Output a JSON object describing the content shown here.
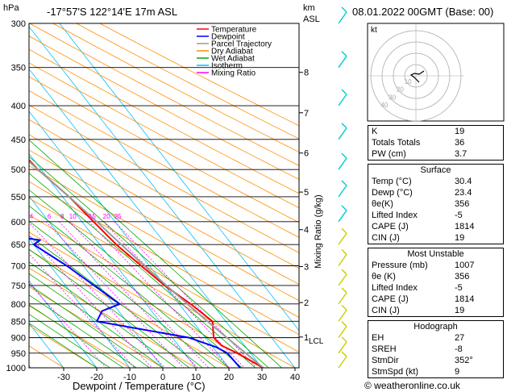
{
  "header": {
    "hpa_label": "hPa",
    "location": "-17°57'S  122°14'E  17m  ASL",
    "km_label": "km",
    "asl_label": "ASL",
    "datetime": "08.01.2022  00GMT  (Base: 00)"
  },
  "axes": {
    "xlabel": "Dewpoint / Temperature (°C)",
    "ylabel_right": "Mixing Ratio (g/kg)",
    "pressure_ticks": [
      "300",
      "350",
      "400",
      "450",
      "500",
      "550",
      "600",
      "650",
      "700",
      "750",
      "800",
      "850",
      "900",
      "950",
      "1000"
    ],
    "temp_ticks": [
      "-30",
      "-20",
      "-10",
      "0",
      "10",
      "20",
      "30",
      "40"
    ],
    "km_ticks": [
      "1",
      "2",
      "3",
      "4",
      "5",
      "6",
      "7",
      "8"
    ],
    "lcl_label": "LCL",
    "mixing_ratio_labels": [
      "1",
      "2",
      "3",
      "4",
      "6",
      "8",
      "10",
      "15",
      "20",
      "25"
    ]
  },
  "legend": [
    {
      "label": "Temperature",
      "color": "#ff0000"
    },
    {
      "label": "Dewpoint",
      "color": "#0000ff"
    },
    {
      "label": "Parcel Trajectory",
      "color": "#999999"
    },
    {
      "label": "Dry Adiabat",
      "color": "#ff8c00"
    },
    {
      "label": "Wet Adiabat",
      "color": "#00aa00"
    },
    {
      "label": "Isotherm",
      "color": "#00bfff"
    },
    {
      "label": "Mixing Ratio",
      "color": "#ff00ff"
    }
  ],
  "hodograph": {
    "unit_label": "kt",
    "ring_labels": [
      "10",
      "20",
      "30",
      "40"
    ]
  },
  "indices": {
    "k": {
      "label": "K",
      "value": "19"
    },
    "tt": {
      "label": "Totals Totals",
      "value": "36"
    },
    "pw": {
      "label": "PW (cm)",
      "value": "3.7"
    }
  },
  "surface": {
    "title": "Surface",
    "rows": [
      {
        "label": "Temp (°C)",
        "value": "30.4"
      },
      {
        "label": "Dewp (°C)",
        "value": "23.4"
      },
      {
        "label": "θe(K)",
        "value": "356"
      },
      {
        "label": "Lifted Index",
        "value": "-5"
      },
      {
        "label": "CAPE (J)",
        "value": "1814"
      },
      {
        "label": "CIN (J)",
        "value": "19"
      }
    ]
  },
  "most_unstable": {
    "title": "Most Unstable",
    "rows": [
      {
        "label": "Pressure (mb)",
        "value": "1007"
      },
      {
        "label": "θe (K)",
        "value": "356"
      },
      {
        "label": "Lifted Index",
        "value": "-5"
      },
      {
        "label": "CAPE (J)",
        "value": "1814"
      },
      {
        "label": "CIN (J)",
        "value": "19"
      }
    ]
  },
  "hodo_table": {
    "title": "Hodograph",
    "rows": [
      {
        "label": "EH",
        "value": "27"
      },
      {
        "label": "SREH",
        "value": "-8"
      },
      {
        "label": "StmDir",
        "value": "352°"
      },
      {
        "label": "StmSpd (kt)",
        "value": "9"
      }
    ]
  },
  "footer": {
    "copyright": "© weatheronline.co.uk"
  },
  "chart_data": {
    "type": "line",
    "title": "",
    "xlabel": "Dewpoint / Temperature (°C)",
    "ylabel": "hPa",
    "xlim": [
      -35,
      40
    ],
    "ylim": [
      1000,
      300
    ],
    "series": [
      {
        "name": "Temperature",
        "color": "#ff0000",
        "points": [
          [
            1000,
            30.4
          ],
          [
            950,
            26
          ],
          [
            925,
            23
          ],
          [
            900,
            22.5
          ],
          [
            850,
            26
          ],
          [
            800,
            23.5
          ],
          [
            750,
            20
          ],
          [
            700,
            17.5
          ],
          [
            650,
            15
          ],
          [
            600,
            13.5
          ],
          [
            550,
            12
          ],
          [
            500,
            9
          ],
          [
            450,
            7.5
          ],
          [
            400,
            7
          ],
          [
            375,
            4
          ]
        ]
      },
      {
        "name": "Dewpoint",
        "color": "#0000ff",
        "points": [
          [
            1000,
            23.4
          ],
          [
            950,
            23
          ],
          [
            930,
            21
          ],
          [
            900,
            15
          ],
          [
            850,
            -9
          ],
          [
            820,
            -5
          ],
          [
            800,
            2
          ],
          [
            770,
            0
          ],
          [
            700,
            -5
          ],
          [
            650,
            -10
          ],
          [
            640,
            -7
          ],
          [
            625,
            -20
          ],
          [
            620,
            -30
          ],
          [
            600,
            -13
          ],
          [
            595,
            -30
          ],
          [
            590,
            -10
          ],
          [
            575,
            -20
          ],
          [
            568,
            -30
          ],
          [
            560,
            -5
          ],
          [
            500,
            -10
          ],
          [
            480,
            -15
          ],
          [
            400,
            -20
          ],
          [
            390,
            -23
          ],
          [
            370,
            -19
          ],
          [
            340,
            -28
          ],
          [
            320,
            -32
          ],
          [
            300,
            -33
          ]
        ]
      },
      {
        "name": "Parcel Trajectory",
        "color": "#999999",
        "points": [
          [
            1000,
            30.4
          ],
          [
            950,
            28.5
          ],
          [
            900,
            26.5
          ],
          [
            850,
            24.5
          ],
          [
            800,
            22.5
          ],
          [
            750,
            20.5
          ],
          [
            700,
            18.5
          ],
          [
            650,
            16.5
          ],
          [
            600,
            14.5
          ],
          [
            550,
            12
          ],
          [
            500,
            9
          ],
          [
            450,
            6
          ],
          [
            400,
            2
          ],
          [
            375,
            -0.5
          ]
        ]
      }
    ]
  }
}
